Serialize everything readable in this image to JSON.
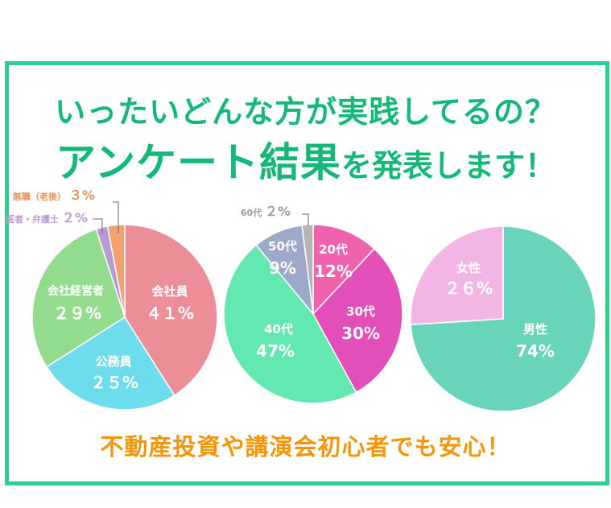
{
  "header": {
    "line1": "いったいどんな方が実践してるの？",
    "line2_main": "アンケート結果",
    "line2_sub": "を発表します！"
  },
  "footer": {
    "text": "不動産投資や講演会初心者でも安心！"
  },
  "colors": {
    "border": "#2ecf8e",
    "title": "#14b877",
    "footer": "#f5960a",
    "label_white": "#ffffff"
  },
  "chart_data": [
    {
      "type": "pie",
      "slices": [
        {
          "label": "会社員",
          "value": 41,
          "display": "４１%",
          "color": "#ec8e98",
          "text_color": "#ffffff"
        },
        {
          "label": "公務員",
          "value": 25,
          "display": "２５%",
          "color": "#6ddded",
          "text_color": "#ffffff"
        },
        {
          "label": "会社経営者",
          "value": 29,
          "display": "２９%",
          "color": "#93dc8d",
          "text_color": "#ffffff"
        },
        {
          "label": "医者・弁護士",
          "value": 2,
          "display": "２%",
          "color": "#b99ad2",
          "text_color": "#b99ad2"
        },
        {
          "label": "無職（老後）",
          "value": 3,
          "display": "３%",
          "color": "#f0a370",
          "text_color": "#e8945a"
        }
      ]
    },
    {
      "type": "pie",
      "slices": [
        {
          "label": "20代",
          "value": 12,
          "display": "12%",
          "color": "#ef62ac",
          "text_color": "#ffffff"
        },
        {
          "label": "30代",
          "value": 30,
          "display": "30%",
          "color": "#e24fb9",
          "text_color": "#ffffff"
        },
        {
          "label": "40代",
          "value": 47,
          "display": "47%",
          "color": "#63e8b2",
          "text_color": "#ffffff"
        },
        {
          "label": "50代",
          "value": 9,
          "display": "9%",
          "color": "#9ca9c9",
          "text_color": "#ffffff"
        },
        {
          "label": "60代",
          "value": 2,
          "display": "２%",
          "color": "#b5b5b5",
          "text_color": "#9a9a9a"
        }
      ]
    },
    {
      "type": "pie",
      "slices": [
        {
          "label": "男性",
          "value": 74,
          "display": "74%",
          "color": "#68d4bc",
          "text_color": "#ffffff"
        },
        {
          "label": "女性",
          "value": 26,
          "display": "２６%",
          "color": "#f3b6e4",
          "text_color": "#ffffff"
        }
      ]
    }
  ]
}
